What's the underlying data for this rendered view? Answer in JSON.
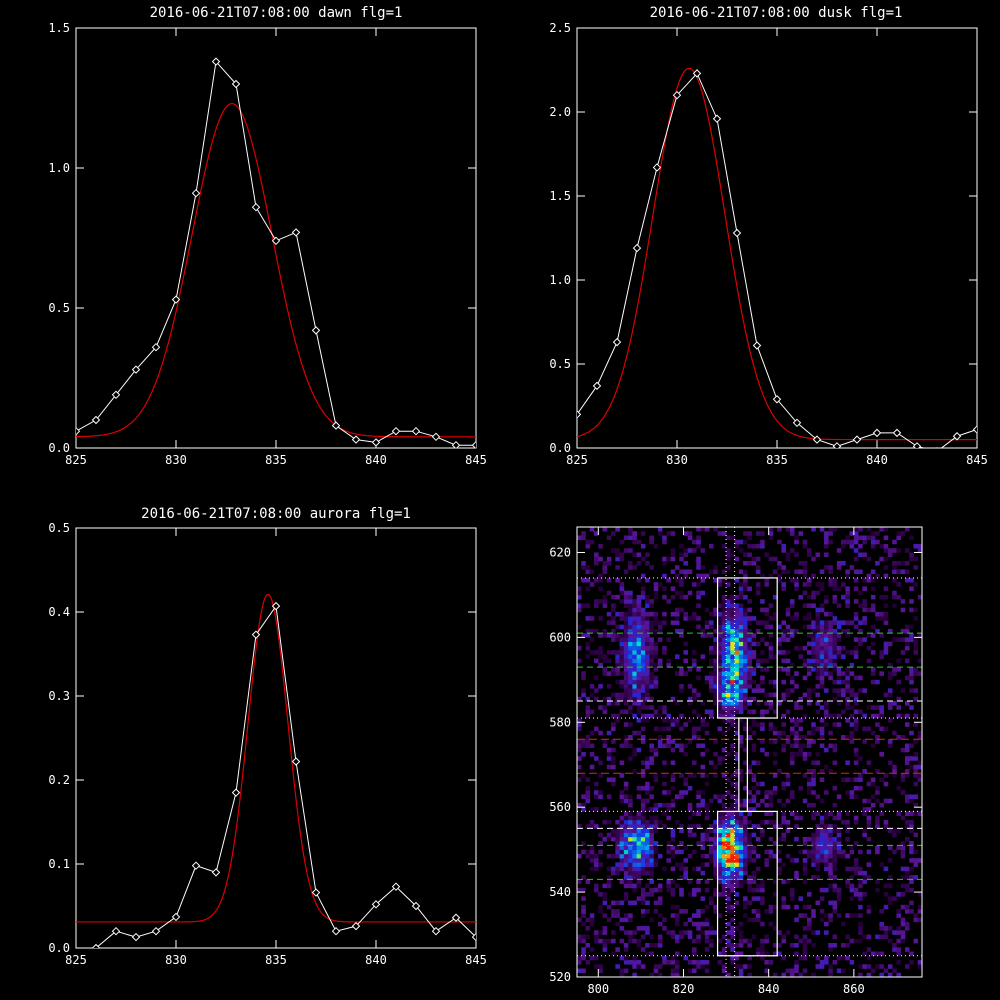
{
  "chart_data": [
    {
      "type": "line",
      "title": "2016-06-21T07:08:00 dawn flg=1",
      "xlim": [
        825,
        845
      ],
      "ylim": [
        0,
        1.5
      ],
      "x_ticks": [
        825,
        830,
        835,
        840,
        845
      ],
      "y_ticks": [
        "0.0",
        "0.5",
        "1.0",
        "1.5"
      ],
      "grid": false,
      "series": [
        {
          "kind": "data",
          "color": "#ffffff",
          "marker": "diamond",
          "x": [
            825,
            826,
            827,
            828,
            829,
            830,
            831,
            832,
            833,
            834,
            835,
            836,
            837,
            838,
            839,
            840,
            841,
            842,
            843,
            844,
            845
          ],
          "y": [
            0.06,
            0.1,
            0.19,
            0.28,
            0.36,
            0.53,
            0.91,
            1.38,
            1.3,
            0.86,
            0.74,
            0.77,
            0.42,
            0.08,
            0.03,
            0.02,
            0.06,
            0.06,
            0.04,
            0.01,
            0.01
          ]
        },
        {
          "kind": "gaussian_fit",
          "color": "#dd0000",
          "amplitude": 1.19,
          "center": 832.8,
          "sigma": 2.0,
          "offset": 0.04
        }
      ]
    },
    {
      "type": "line",
      "title": "2016-06-21T07:08:00 dusk flg=1",
      "xlim": [
        825,
        845
      ],
      "ylim": [
        0,
        2.5
      ],
      "x_ticks": [
        825,
        830,
        835,
        840,
        845
      ],
      "y_ticks": [
        "0.0",
        "0.5",
        "1.0",
        "1.5",
        "2.0",
        "2.5"
      ],
      "grid": false,
      "series": [
        {
          "kind": "data",
          "color": "#ffffff",
          "marker": "diamond",
          "x": [
            825,
            826,
            827,
            828,
            829,
            830,
            831,
            832,
            833,
            834,
            835,
            836,
            837,
            838,
            839,
            840,
            841,
            842,
            843,
            844,
            845
          ],
          "y": [
            0.2,
            0.37,
            0.63,
            1.19,
            1.67,
            2.1,
            2.23,
            1.96,
            1.28,
            0.61,
            0.29,
            0.15,
            0.05,
            0.01,
            0.05,
            0.09,
            0.09,
            0.01,
            -0.02,
            0.07,
            0.11
          ]
        },
        {
          "kind": "gaussian_fit",
          "color": "#dd0000",
          "amplitude": 2.21,
          "center": 830.6,
          "sigma": 1.8,
          "offset": 0.05
        }
      ]
    },
    {
      "type": "line",
      "title": "2016-06-21T07:08:00 aurora flg=1",
      "xlim": [
        825,
        845
      ],
      "ylim": [
        0,
        0.5
      ],
      "x_ticks": [
        825,
        830,
        835,
        840,
        845
      ],
      "y_ticks": [
        "0.0",
        "0.1",
        "0.2",
        "0.3",
        "0.4",
        "0.5"
      ],
      "grid": false,
      "series": [
        {
          "kind": "data",
          "color": "#ffffff",
          "marker": "diamond",
          "x": [
            825,
            826,
            827,
            828,
            829,
            830,
            831,
            832,
            833,
            834,
            835,
            836,
            837,
            838,
            839,
            840,
            841,
            842,
            843,
            844,
            845
          ],
          "y": [
            -0.01,
            0.0,
            0.02,
            0.013,
            0.02,
            0.037,
            0.098,
            0.09,
            0.185,
            0.373,
            0.407,
            0.222,
            0.066,
            0.02,
            0.026,
            0.052,
            0.073,
            0.05,
            0.02,
            0.036,
            0.013
          ]
        },
        {
          "kind": "gaussian_fit",
          "color": "#dd0000",
          "amplitude": 0.39,
          "center": 834.6,
          "sigma": 1.0,
          "offset": 0.031
        }
      ]
    },
    {
      "type": "heatmap",
      "title": "",
      "xlim": [
        795,
        876
      ],
      "ylim": [
        520,
        626
      ],
      "x_ticks": [
        800,
        820,
        840,
        860
      ],
      "y_ticks": [
        520,
        540,
        560,
        580,
        600,
        620
      ],
      "colormap": "rainbow",
      "emission_blobs": [
        {
          "x": 831,
          "y": 550,
          "sx": 2.2,
          "sy": 4.5,
          "amp": 1.0
        },
        {
          "x": 832,
          "y": 596,
          "sx": 2.2,
          "sy": 6.5,
          "amp": 0.65
        },
        {
          "x": 831,
          "y": 587,
          "sx": 2.0,
          "sy": 3.0,
          "amp": 0.45
        },
        {
          "x": 809,
          "y": 551,
          "sx": 2.6,
          "sy": 4.0,
          "amp": 0.6
        },
        {
          "x": 809,
          "y": 596,
          "sx": 2.2,
          "sy": 7.0,
          "amp": 0.45
        },
        {
          "x": 853,
          "y": 551,
          "sx": 2.0,
          "sy": 3.0,
          "amp": 0.35
        },
        {
          "x": 853,
          "y": 598,
          "sx": 2.2,
          "sy": 5.0,
          "amp": 0.25
        }
      ],
      "white_dotted_horizontal": [
        525,
        559,
        581,
        614
      ],
      "white_dotted_vertical": [
        830,
        832
      ],
      "white_dashed": [
        555,
        585
      ],
      "green_dashed": [
        543,
        551,
        593,
        601
      ],
      "red_dashed": [
        568,
        576
      ],
      "rois": [
        {
          "x0": 828,
          "x1": 842,
          "y0": 525,
          "y1": 559,
          "color": "#ffffff"
        },
        {
          "x0": 828,
          "x1": 842,
          "y0": 581,
          "y1": 614,
          "color": "#ffffff"
        },
        {
          "x0": 833,
          "x1": 835,
          "y0": 559,
          "y1": 581,
          "color": "#ffffff"
        }
      ],
      "colors": {
        "white_lines": "#ffffff",
        "green_lines": "#22cc22",
        "red_lines": "#dd2222"
      }
    }
  ]
}
